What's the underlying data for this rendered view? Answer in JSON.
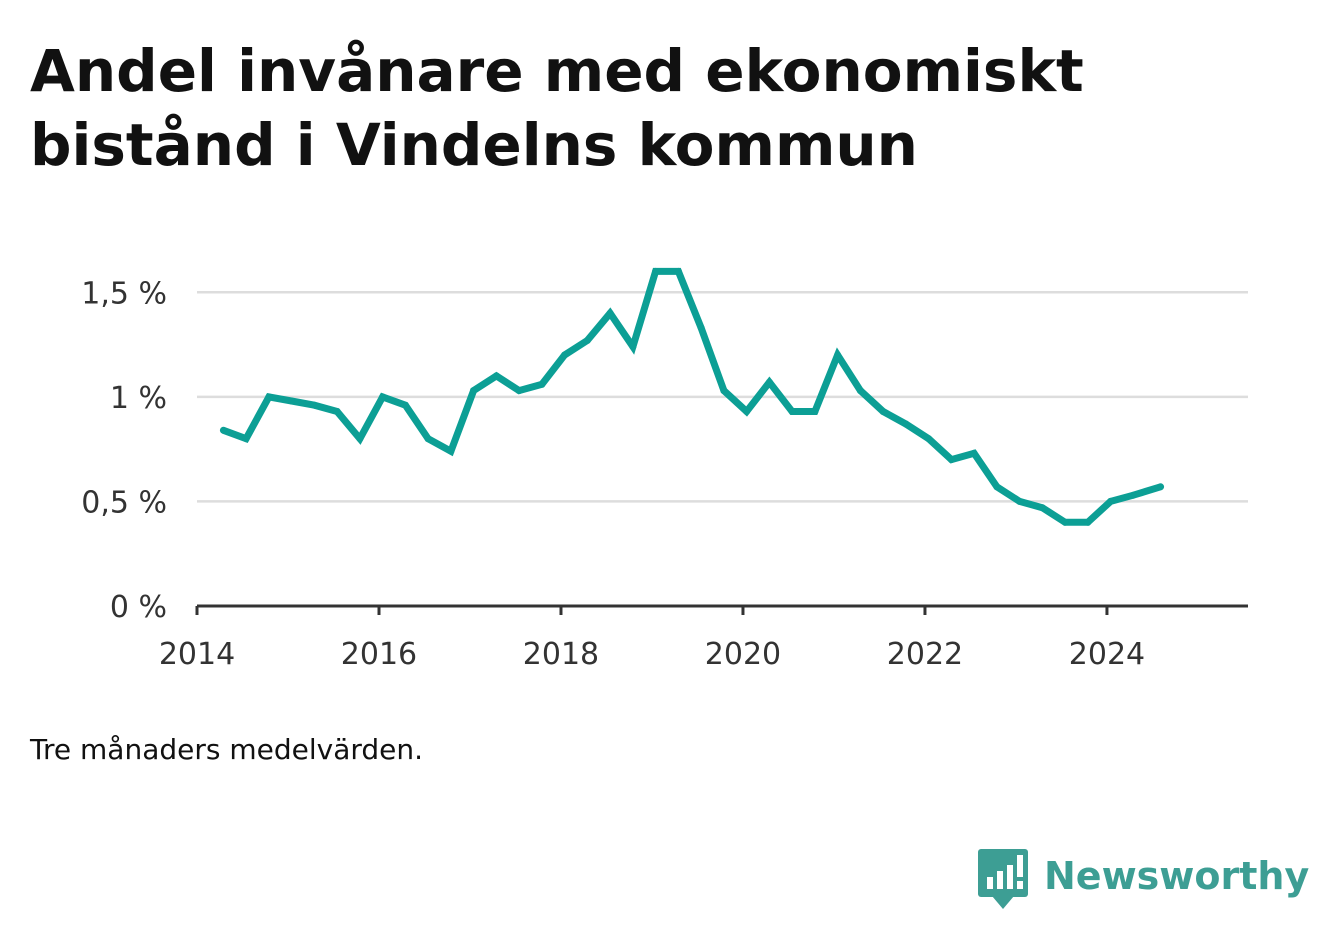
{
  "title": "Andel invånare med ekonomiskt bistånd i Vindelns kommun",
  "note": "Tre månaders medelvärden.",
  "brand": {
    "name": "Newsworthy",
    "color": "#3d9e94",
    "icon": "chart-bubble-icon"
  },
  "colors": {
    "line": "#0c9f95",
    "grid": "#dddddd",
    "axis": "#333333"
  },
  "chart_data": {
    "type": "line",
    "title": "Andel invånare med ekonomiskt bistånd i Vindelns kommun",
    "xlabel": "",
    "ylabel": "",
    "xlim": [
      2014.0,
      2025.55
    ],
    "ylim": [
      0,
      1.75
    ],
    "grid": true,
    "legend": "none",
    "x_ticks": [
      2014,
      2016,
      2018,
      2020,
      2022,
      2024
    ],
    "x_tick_labels": [
      "2014",
      "2016",
      "2018",
      "2020",
      "2022",
      "2024"
    ],
    "y_ticks": [
      0,
      0.5,
      1,
      1.5
    ],
    "y_tick_labels": [
      "0 %",
      "0,5 %",
      "1 %",
      "1,5 %"
    ],
    "series": [
      {
        "x": [
          2014.29,
          2014.54,
          2014.79,
          2015.04,
          2015.29,
          2015.54,
          2015.79,
          2016.04,
          2016.29,
          2016.54,
          2016.79,
          2017.04,
          2017.29,
          2017.54,
          2017.79,
          2018.04,
          2018.29,
          2018.54,
          2018.79,
          2019.04,
          2019.29,
          2019.54,
          2019.79,
          2020.04,
          2020.29,
          2020.54,
          2020.79,
          2021.04,
          2021.29,
          2021.54,
          2021.79,
          2022.04,
          2022.29,
          2022.54,
          2022.79,
          2023.04,
          2023.29,
          2023.54,
          2023.79,
          2024.04,
          2024.29,
          2024.59
        ],
        "values": [
          0.84,
          0.8,
          1.0,
          0.98,
          0.96,
          0.93,
          0.8,
          1.0,
          0.96,
          0.8,
          0.74,
          1.03,
          1.1,
          1.03,
          1.06,
          1.2,
          1.27,
          1.4,
          1.24,
          1.6,
          1.6,
          1.33,
          1.03,
          0.93,
          1.07,
          0.93,
          0.93,
          1.2,
          1.03,
          0.93,
          0.87,
          0.8,
          0.7,
          0.73,
          0.57,
          0.5,
          0.47,
          0.4,
          0.4,
          0.5,
          0.53,
          0.57
        ]
      }
    ]
  }
}
